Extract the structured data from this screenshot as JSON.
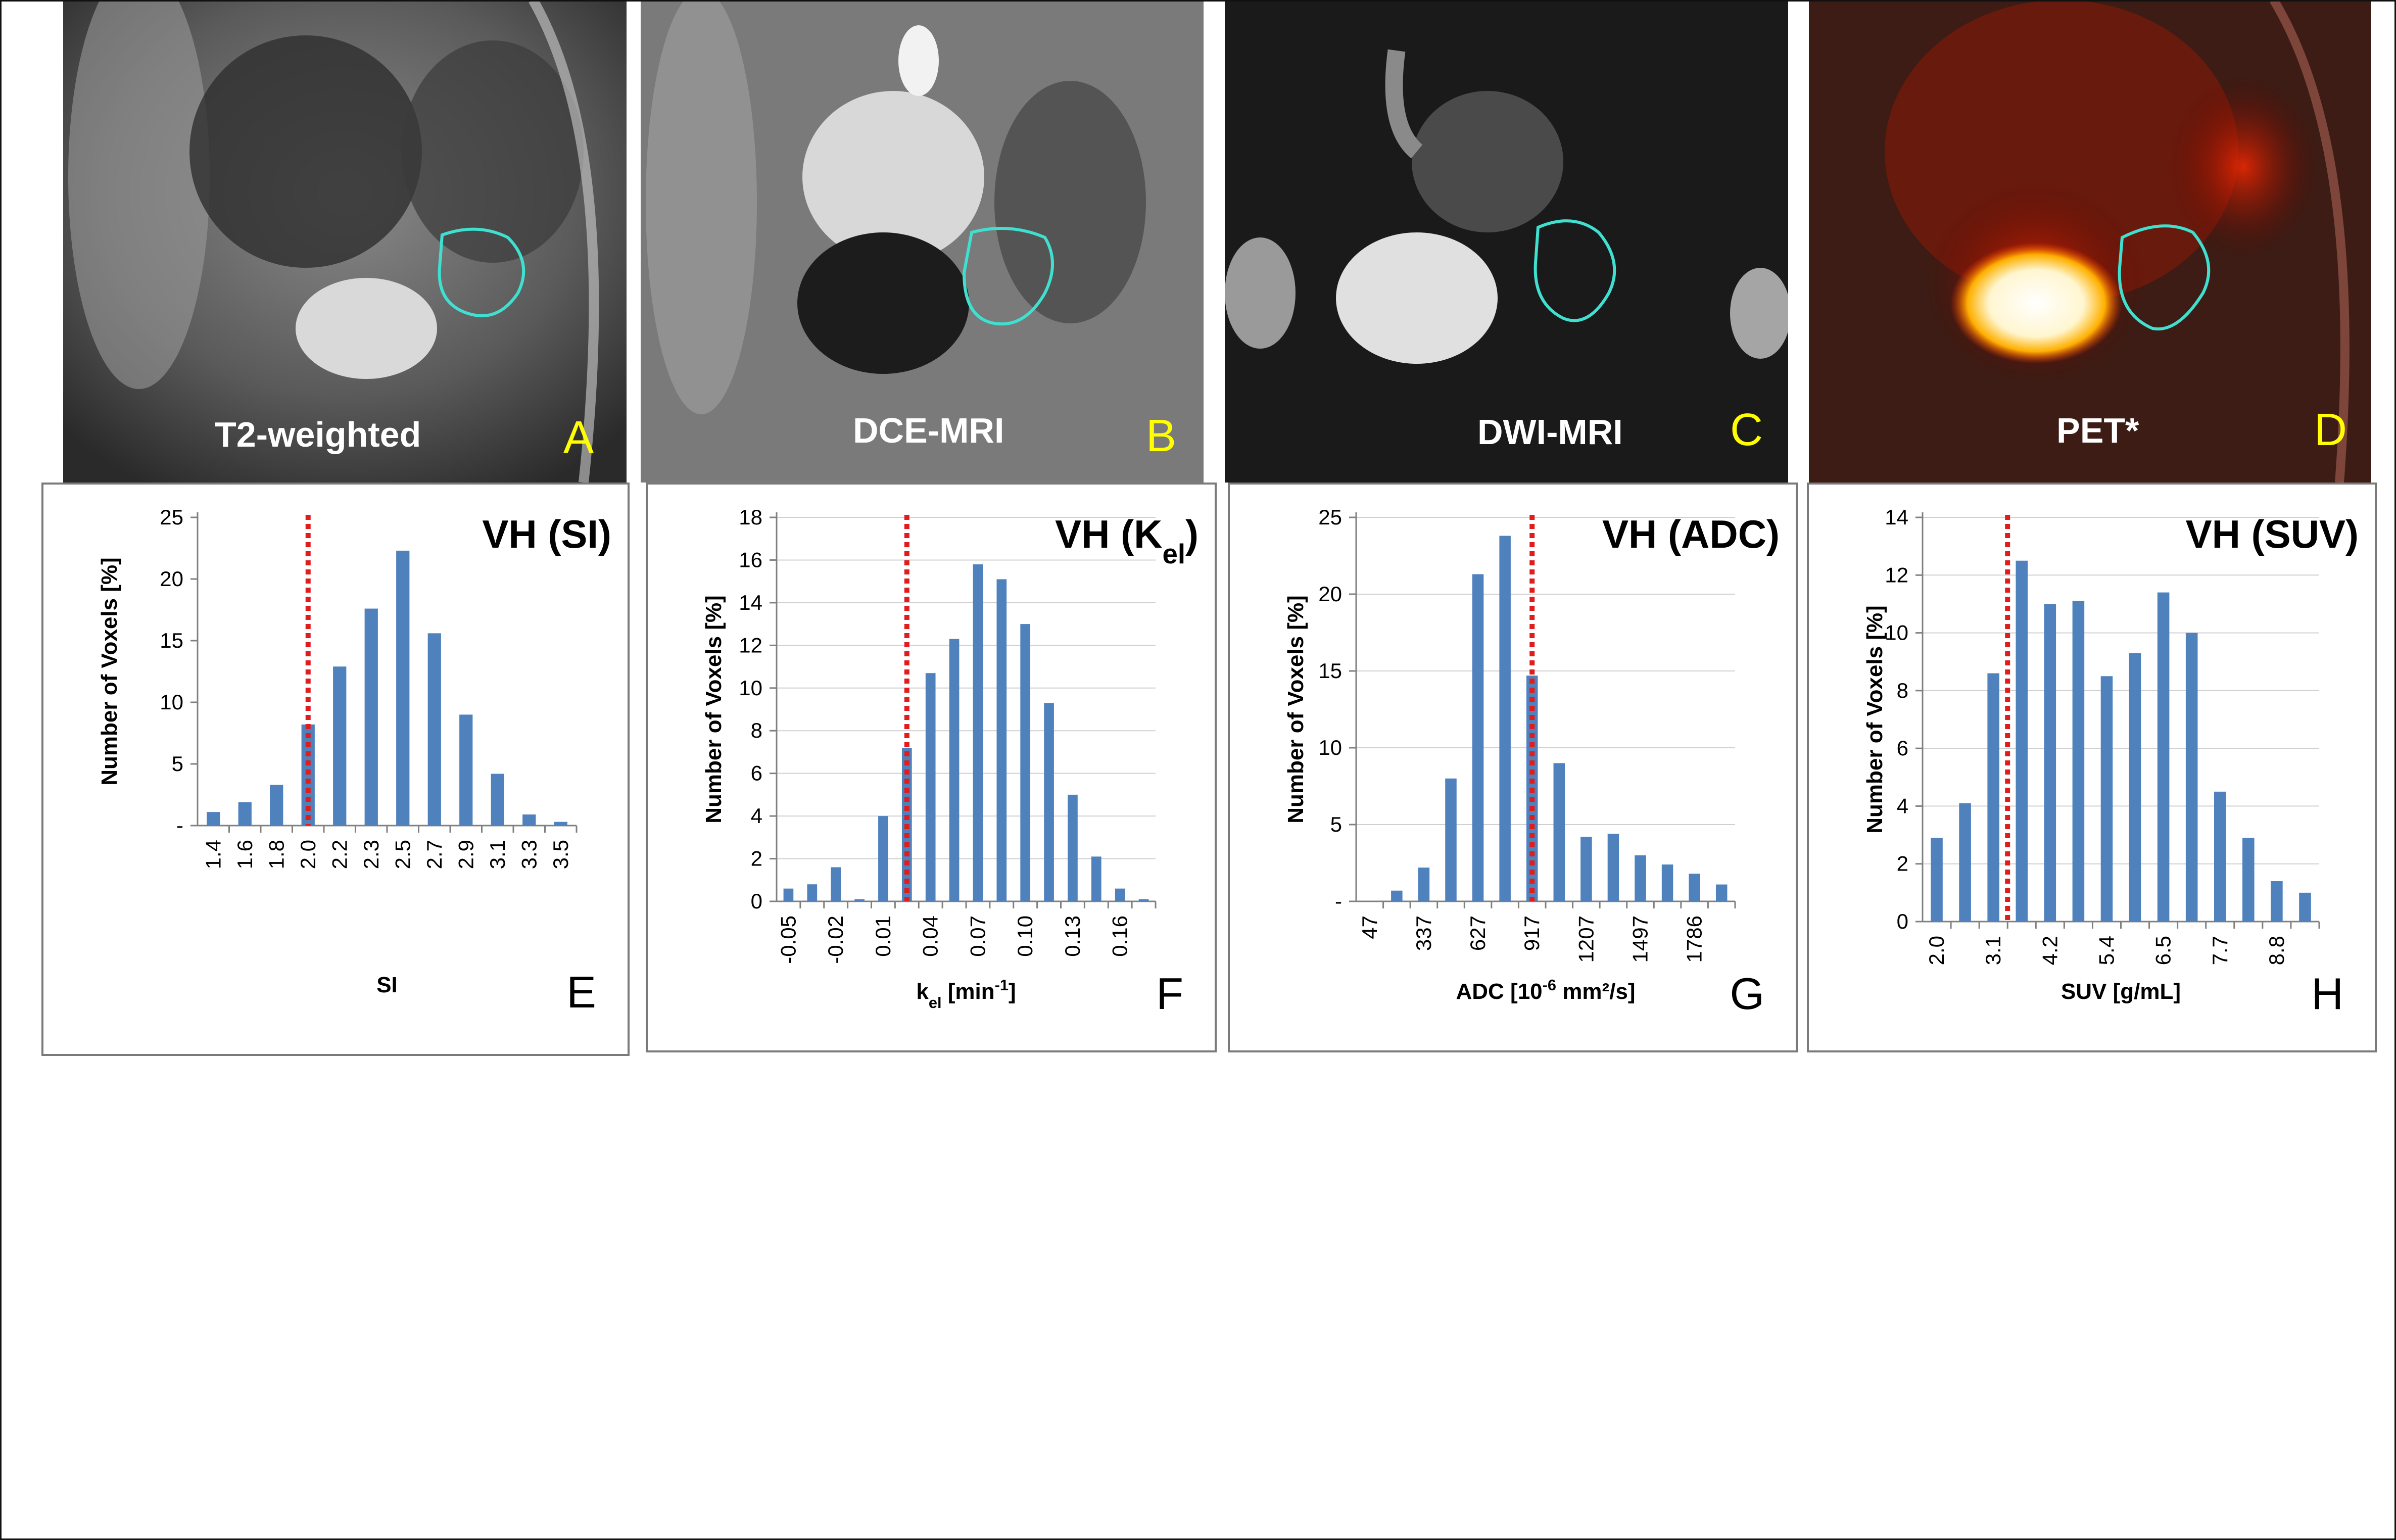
{
  "image_panels": [
    {
      "id": "A",
      "modality": "T2-weighted",
      "letter": "A"
    },
    {
      "id": "B",
      "modality": "DCE-MRI",
      "letter": "B"
    },
    {
      "id": "C",
      "modality": "DWI-MRI",
      "letter": "C"
    },
    {
      "id": "D",
      "modality": "PET*",
      "letter": "D"
    }
  ],
  "colors": {
    "bar": "#4f81bd",
    "threshold": "#e01c1c",
    "roi_contour": "#40e0d0",
    "panel_label": "#ffff00",
    "modality_label": "#ffffff"
  },
  "chart_data": [
    {
      "type": "bar",
      "title": "VH (SI)",
      "letter": "E",
      "xlabel": "SI",
      "ylabel": "Number of Voxels [%]",
      "y_ticks": [
        "-",
        "5",
        "10",
        "15",
        "20",
        "25"
      ],
      "ylim": [
        0,
        25
      ],
      "bar_values": [
        1.1,
        1.9,
        3.3,
        8.2,
        12.9,
        17.6,
        22.3,
        15.6,
        9.0,
        4.2,
        0.9,
        0.3
      ],
      "x_tick_labels": [
        "1.4",
        "1.6",
        "1.8",
        "2.0",
        "2.2",
        "2.3",
        "2.5",
        "2.7",
        "2.9",
        "3.1",
        "3.3",
        "3.5"
      ],
      "threshold_position": 3.5,
      "grid": false
    },
    {
      "type": "bar",
      "title": "VH (K",
      "title_sub": "el",
      "title_end": ")",
      "letter": "F",
      "xlabel": "k",
      "xlabel_sub": "el",
      "xlabel_unit": " [min",
      "xlabel_sup": "-1",
      "xlabel_end": "]",
      "ylabel": "Number of Voxels [%]",
      "y_ticks": [
        "0",
        "2",
        "4",
        "6",
        "8",
        "10",
        "12",
        "14",
        "16",
        "18"
      ],
      "ylim": [
        0,
        18
      ],
      "bar_values": [
        0.6,
        0.8,
        1.6,
        0.1,
        4.0,
        7.2,
        10.7,
        12.3,
        15.8,
        15.1,
        13.0,
        9.3,
        5.0,
        2.1,
        0.6,
        0.1
      ],
      "x_tick_labels": [
        "-0.05",
        "",
        "-0.02",
        "",
        "0.01",
        "",
        "0.04",
        "",
        "0.07",
        "",
        "0.10",
        "",
        "0.13",
        "",
        "0.16",
        ""
      ],
      "x_tick_stride": 2,
      "threshold_position": 5.5,
      "grid": true
    },
    {
      "type": "bar",
      "title": "VH (ADC)",
      "letter": "G",
      "xlabel": "ADC [10",
      "xlabel_sup": "-6",
      "xlabel_end": " mm²/s]",
      "ylabel": "Number of Voxels [%]",
      "y_ticks": [
        "-",
        "5",
        "10",
        "15",
        "20",
        "25"
      ],
      "ylim": [
        0,
        25
      ],
      "bar_values": [
        0.0,
        0.7,
        2.2,
        8.0,
        21.3,
        23.8,
        14.7,
        9.0,
        4.2,
        4.4,
        3.0,
        2.4,
        1.8,
        1.1
      ],
      "x_tick_labels": [
        "47",
        "",
        "337",
        "",
        "627",
        "",
        "917",
        "",
        "1207",
        "",
        "1497",
        "",
        "1786",
        ""
      ],
      "threshold_position": 6.5,
      "grid": true
    },
    {
      "type": "bar",
      "title": "VH (SUV)",
      "letter": "H",
      "xlabel": "SUV [g/mL]",
      "ylabel": "Number of Voxels [%]",
      "y_ticks": [
        "0",
        "2",
        "4",
        "6",
        "8",
        "10",
        "12",
        "14"
      ],
      "ylim": [
        0,
        14
      ],
      "bar_values": [
        2.9,
        4.1,
        8.6,
        12.5,
        11.0,
        11.1,
        8.5,
        9.3,
        11.4,
        10.0,
        4.5,
        2.9,
        1.4,
        1.0
      ],
      "x_tick_labels": [
        "2.0",
        "",
        "3.1",
        "",
        "4.2",
        "",
        "5.4",
        "",
        "6.5",
        "",
        "7.7",
        "",
        "8.8",
        ""
      ],
      "threshold_position": 3.0,
      "grid": true
    }
  ]
}
